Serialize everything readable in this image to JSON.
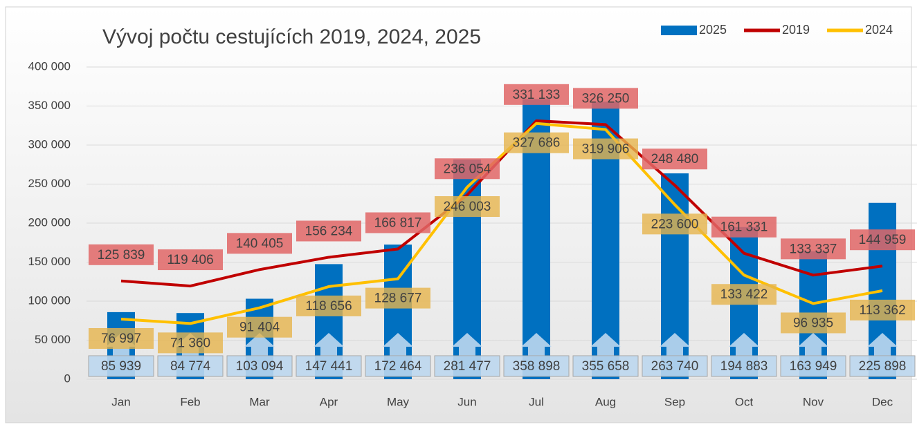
{
  "chart_data": {
    "type": "bar_line",
    "title": "Vývoj počtu cestujících 2019, 2024, 2025",
    "categories": [
      "Jan",
      "Feb",
      "Mar",
      "Apr",
      "May",
      "Jun",
      "Jul",
      "Aug",
      "Sep",
      "Oct",
      "Nov",
      "Dec"
    ],
    "series": [
      {
        "name": "2025",
        "type": "bar",
        "color": "#0070c0",
        "values": [
          85939,
          84774,
          103094,
          147441,
          172464,
          281477,
          358898,
          355658,
          263740,
          194883,
          163949,
          225898
        ],
        "value_labels": [
          "85 939",
          "84 774",
          "103 094",
          "147 441",
          "172 464",
          "281 477",
          "358 898",
          "355 658",
          "263 740",
          "194 883",
          "163 949",
          "225 898"
        ]
      },
      {
        "name": "2019",
        "type": "line",
        "color": "#c00000",
        "values": [
          125839,
          119406,
          140405,
          156234,
          166817,
          236054,
          331133,
          326250,
          248480,
          161331,
          133337,
          144959
        ],
        "value_labels": [
          "125 839",
          "119 406",
          "140 405",
          "156 234",
          "166 817",
          "236 054",
          "331 133",
          "326 250",
          "248 480",
          "161 331",
          "133 337",
          "144 959"
        ]
      },
      {
        "name": "2024",
        "type": "line",
        "color": "#ffc000",
        "values": [
          76997,
          71360,
          91404,
          118656,
          128677,
          246003,
          327686,
          319906,
          223600,
          133422,
          96935,
          113362
        ],
        "value_labels": [
          "76 997",
          "71 360",
          "91 404",
          "118 656",
          "128 677",
          "246 003",
          "327 686",
          "319 906",
          "223 600",
          "133 422",
          "96 935",
          "113 362"
        ]
      }
    ],
    "ylim": [
      0,
      400000
    ],
    "yticks": [
      0,
      {
        "value": 50000,
        "label": "50 000"
      },
      {
        "value": 100000,
        "label": "100 000"
      },
      {
        "value": 150000,
        "label": "150 000"
      },
      {
        "value": 200000,
        "label": "200 000"
      },
      {
        "value": 250000,
        "label": "250 000"
      },
      {
        "value": 300000,
        "label": "300 000"
      },
      {
        "value": 350000,
        "label": "350 000"
      },
      {
        "value": 400000,
        "label": "400 000"
      }
    ],
    "grid": true,
    "legend": "top-right"
  }
}
